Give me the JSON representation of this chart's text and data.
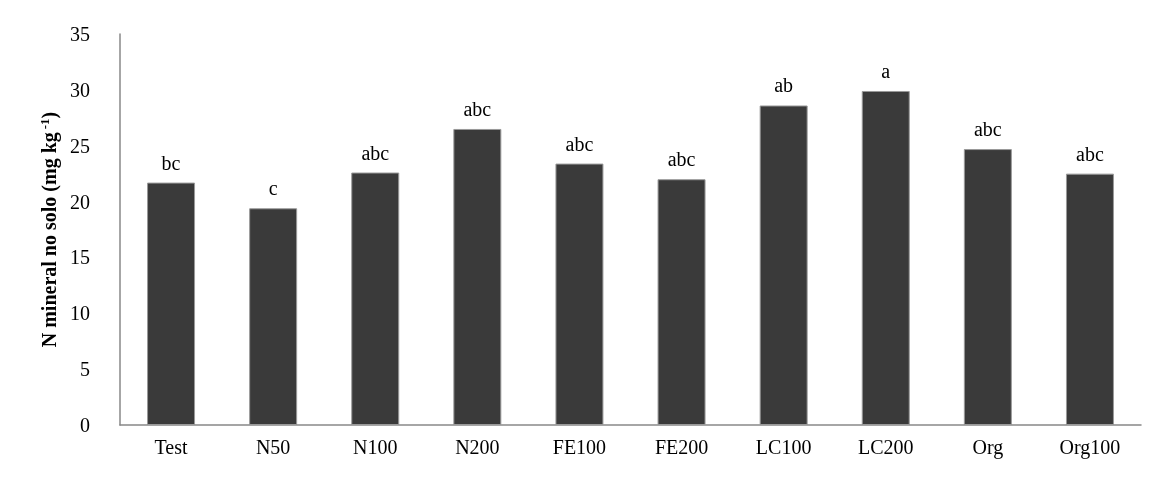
{
  "chart_data": {
    "type": "bar",
    "ylabel": "N mineral no solo (mg kg$^{-1}$)",
    "categories": [
      "Test",
      "N50",
      "N100",
      "N200",
      "FE100",
      "FE200",
      "LC100",
      "LC200",
      "Org",
      "Org100"
    ],
    "values": [
      21.7,
      19.4,
      22.6,
      26.5,
      23.4,
      22.0,
      28.6,
      29.9,
      24.7,
      22.5
    ],
    "value_labels": [
      "bc",
      "c",
      "abc",
      "abc",
      "abc",
      "abc",
      "ab",
      "a",
      "abc",
      "abc"
    ],
    "color": "#3a3a3a",
    "ylim": [
      0,
      35
    ],
    "yticks": [
      0,
      5,
      10,
      15,
      20,
      25,
      30,
      35
    ],
    "grid": false
  }
}
